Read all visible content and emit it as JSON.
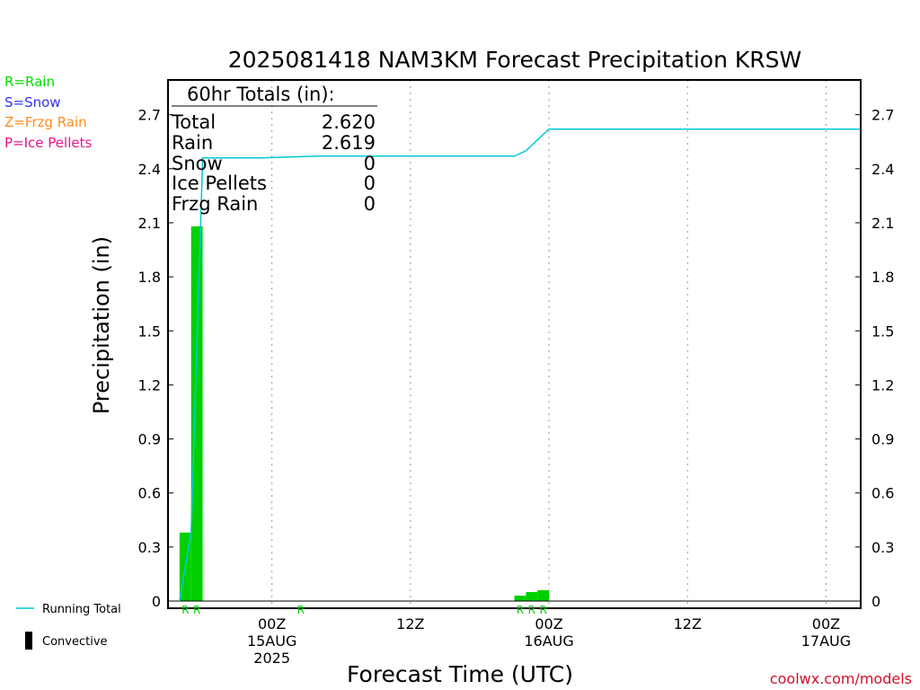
{
  "chart_data": {
    "type": "bar",
    "title": "2025081418 NAM3KM Forecast Precipitation KRSW",
    "xlabel": "Forecast Time (UTC)",
    "ylabel": "Precipitation (in)",
    "ylim": [
      0,
      2.9
    ],
    "y_ticks": [
      "0",
      "0.3",
      "0.6",
      "0.9",
      "1.2",
      "1.5",
      "1.8",
      "2.1",
      "2.4",
      "2.7"
    ],
    "x_ticks": [
      {
        "hour": 6,
        "lines": [
          "00Z",
          "15AUG",
          "2025"
        ]
      },
      {
        "hour": 18,
        "lines": [
          "12Z"
        ]
      },
      {
        "hour": 30,
        "lines": [
          "00Z",
          "16AUG"
        ]
      },
      {
        "hour": 42,
        "lines": [
          "12Z"
        ]
      },
      {
        "hour": 54,
        "lines": [
          "00Z",
          "17AUG"
        ]
      }
    ],
    "x_range_hours": [
      -3,
      57
    ],
    "grid": "vertical dotted",
    "type_legend": [
      {
        "label": "R=Rain",
        "color": "#00dd00"
      },
      {
        "label": "S=Snow",
        "color": "#3333ee"
      },
      {
        "label": "Z=Frzg Rain",
        "color": "#ff8c1a"
      },
      {
        "label": "P=Ice Pellets",
        "color": "#ee1188"
      }
    ],
    "series_legend": [
      {
        "label": "Running Total",
        "color": "#00c8d8"
      },
      {
        "label": "Convective",
        "color": "#000000"
      }
    ],
    "bars": [
      {
        "hour": -1.5,
        "value": 0.38
      },
      {
        "hour": -0.5,
        "value": 2.08
      },
      {
        "hour": 27.5,
        "value": 0.03
      },
      {
        "hour": 28.5,
        "value": 0.05
      },
      {
        "hour": 29.5,
        "value": 0.06
      }
    ],
    "running_total": [
      {
        "hour": -2,
        "value": 0.0
      },
      {
        "hour": -1,
        "value": 0.38
      },
      {
        "hour": 0,
        "value": 2.46
      },
      {
        "hour": 4,
        "value": 2.46
      },
      {
        "hour": 5,
        "value": 2.46
      },
      {
        "hour": 10,
        "value": 2.47
      },
      {
        "hour": 27,
        "value": 2.47
      },
      {
        "hour": 28,
        "value": 2.5
      },
      {
        "hour": 29,
        "value": 2.56
      },
      {
        "hour": 30,
        "value": 2.62
      },
      {
        "hour": 57,
        "value": 2.62
      }
    ],
    "ptype_marks": [
      {
        "hour": -1.5,
        "label": "R"
      },
      {
        "hour": -0.5,
        "label": "R"
      },
      {
        "hour": 8.5,
        "label": "R"
      },
      {
        "hour": 27.5,
        "label": "R"
      },
      {
        "hour": 28.5,
        "label": "R"
      },
      {
        "hour": 29.5,
        "label": "R"
      }
    ],
    "totals_box": {
      "header": "60hr Totals (in):",
      "rows": [
        {
          "label": "Total",
          "value": "2.620"
        },
        {
          "label": "Rain",
          "value": "2.619"
        },
        {
          "label": "Snow",
          "value": "0"
        },
        {
          "label": "Ice Pellets",
          "value": "0"
        },
        {
          "label": "Frzg Rain",
          "value": "0"
        }
      ]
    },
    "colors": {
      "bar": "#00d000",
      "running_total": "#00c8d8",
      "rain_mark": "#00cc00"
    }
  },
  "credit": "coolwx.com/models"
}
